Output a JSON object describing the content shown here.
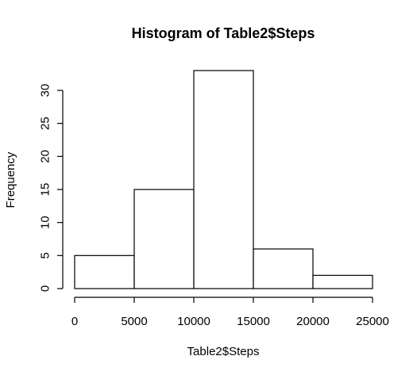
{
  "chart_data": {
    "type": "bar",
    "title": "Histogram of Table2$Steps",
    "xlabel": "Table2$Steps",
    "ylabel": "Frequency",
    "bins": [
      {
        "from": 0,
        "to": 5000,
        "count": 5
      },
      {
        "from": 5000,
        "to": 10000,
        "count": 15
      },
      {
        "from": 10000,
        "to": 15000,
        "count": 33
      },
      {
        "from": 15000,
        "to": 20000,
        "count": 6
      },
      {
        "from": 20000,
        "to": 25000,
        "count": 2
      }
    ],
    "xticks": [
      "0",
      "5000",
      "10000",
      "15000",
      "20000",
      "25000"
    ],
    "yticks": [
      "0",
      "5",
      "10",
      "15",
      "20",
      "25",
      "30"
    ],
    "xlim": [
      0,
      25000
    ],
    "ylim": [
      0,
      33
    ],
    "grid": false,
    "bar_fill": "#ffffff",
    "bar_stroke": "#000000"
  }
}
